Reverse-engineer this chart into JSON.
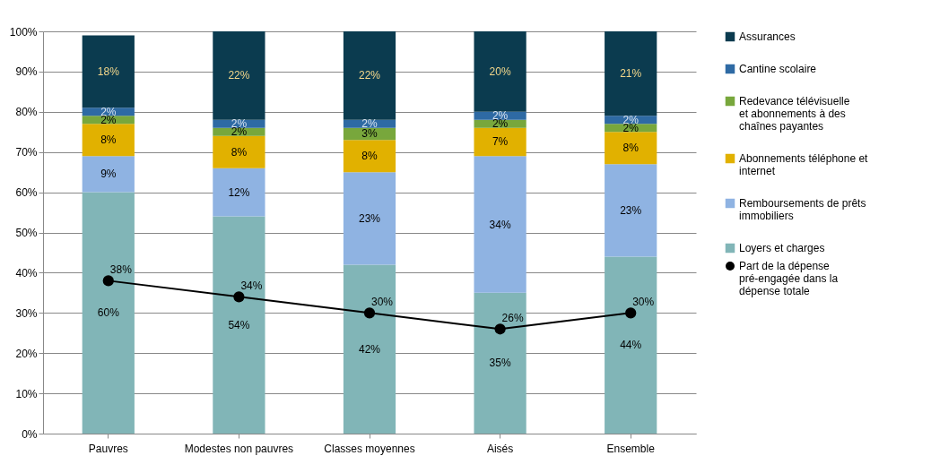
{
  "chart_data": {
    "type": "bar",
    "stacked": true,
    "categories": [
      "Pauvres",
      "Modestes non pauvres",
      "Classes moyennes",
      "Aisés",
      "Ensemble"
    ],
    "ylim": [
      0,
      100
    ],
    "yticks": [
      {
        "value": 0,
        "label": "0%"
      },
      {
        "value": 10,
        "label": "10%"
      },
      {
        "value": 20,
        "label": "20%"
      },
      {
        "value": 30,
        "label": "30%"
      },
      {
        "value": 40,
        "label": "40%"
      },
      {
        "value": 50,
        "label": "50%"
      },
      {
        "value": 60,
        "label": "60%"
      },
      {
        "value": 70,
        "label": "70%"
      },
      {
        "value": 80,
        "label": "80%"
      },
      {
        "value": 90,
        "label": "90%"
      },
      {
        "value": 100,
        "label": "100%"
      }
    ],
    "grid": "y",
    "legend": "right",
    "marker": "circle",
    "series": [
      {
        "name": "Loyers et charges",
        "color": "#81b5b7",
        "values": [
          60,
          54,
          42,
          35,
          44
        ],
        "value_labels": [
          "60%",
          "54%",
          "42%",
          "35%",
          "44%"
        ]
      },
      {
        "name": "Remboursements de prêts immobiliers",
        "color": "#8fb3e2",
        "values": [
          9,
          12,
          23,
          34,
          23
        ],
        "value_labels": [
          "9%",
          "12%",
          "23%",
          "34%",
          "23%"
        ]
      },
      {
        "name": "Abonnements téléphone et internet",
        "color": "#e1b100",
        "values": [
          8,
          8,
          8,
          7,
          8
        ],
        "value_labels": [
          "8%",
          "8%",
          "8%",
          "7%",
          "8%"
        ]
      },
      {
        "name": "Redevance télévisuelle et abonnements à des chaînes payantes",
        "color": "#78a73c",
        "values": [
          2,
          2,
          3,
          2,
          2
        ],
        "value_labels": [
          "2%",
          "2%",
          "3%",
          "2%",
          "2%"
        ]
      },
      {
        "name": "Cantine scolaire",
        "color": "#2e6aa4",
        "values": [
          2,
          2,
          2,
          2,
          2
        ],
        "value_labels": [
          "2%",
          "2%",
          "2%",
          "2%",
          "2%"
        ]
      },
      {
        "name": "Assurances",
        "color": "#0b3b4f",
        "values": [
          18,
          22,
          22,
          20,
          21
        ],
        "value_labels": [
          "18%",
          "22%",
          "22%",
          "20%",
          "21%"
        ]
      },
      {
        "name": "Part de la dépense pré-engagée dans la dépense totale",
        "type": "line",
        "color": "#000000",
        "values": [
          38,
          34,
          30,
          26,
          30
        ],
        "value_labels": [
          "38%",
          "34%",
          "30%",
          "26%",
          "30%"
        ]
      }
    ]
  }
}
